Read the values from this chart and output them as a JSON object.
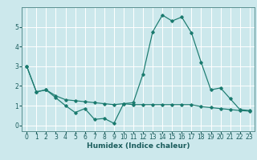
{
  "title": "",
  "xlabel": "Humidex (Indice chaleur)",
  "background_color": "#cce8ec",
  "grid_color": "#ffffff",
  "line_color": "#1a7a6e",
  "line1_x": [
    0,
    1,
    2,
    3,
    4,
    5,
    6,
    7,
    8,
    9,
    10,
    11,
    12,
    13,
    14,
    15,
    16,
    17,
    18,
    19,
    20,
    21,
    22,
    23
  ],
  "line1_y": [
    3.0,
    1.7,
    1.8,
    1.4,
    1.0,
    0.65,
    0.85,
    0.3,
    0.35,
    0.1,
    1.1,
    1.15,
    2.6,
    4.75,
    5.6,
    5.3,
    5.5,
    4.7,
    3.2,
    1.8,
    1.9,
    1.35,
    0.8,
    0.75
  ],
  "line2_x": [
    0,
    1,
    2,
    3,
    4,
    5,
    6,
    7,
    8,
    9,
    10,
    11,
    12,
    13,
    14,
    15,
    16,
    17,
    18,
    19,
    20,
    21,
    22,
    23
  ],
  "line2_y": [
    3.0,
    1.7,
    1.8,
    1.5,
    1.3,
    1.25,
    1.2,
    1.15,
    1.1,
    1.05,
    1.1,
    1.05,
    1.05,
    1.05,
    1.05,
    1.05,
    1.05,
    1.05,
    0.95,
    0.9,
    0.85,
    0.8,
    0.75,
    0.72
  ],
  "ylim": [
    -0.3,
    6.0
  ],
  "yticks": [
    0,
    1,
    2,
    3,
    4,
    5
  ],
  "xlim": [
    -0.5,
    23.5
  ],
  "xticks": [
    0,
    1,
    2,
    3,
    4,
    5,
    6,
    7,
    8,
    9,
    10,
    11,
    12,
    13,
    14,
    15,
    16,
    17,
    18,
    19,
    20,
    21,
    22,
    23
  ],
  "xlabel_fontsize": 6.5,
  "tick_fontsize": 5.5,
  "text_color": "#1a5c5c"
}
